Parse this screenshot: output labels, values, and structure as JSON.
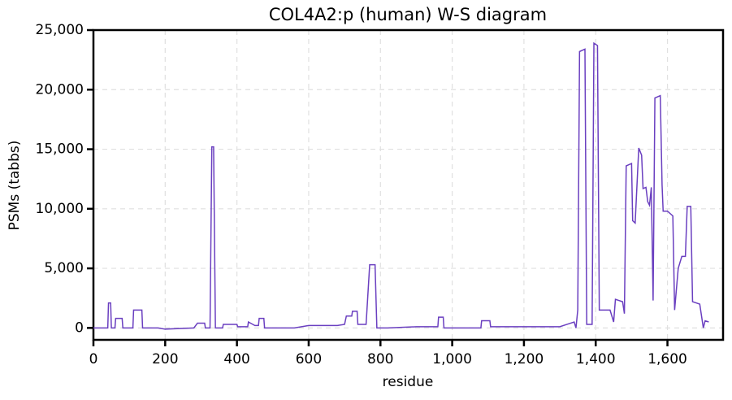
{
  "chart_data": {
    "type": "line",
    "title": "COL4A2:p (human) W-S diagram",
    "x_label": "residue",
    "y_label": "PSMs (tabbs)",
    "color": "#6a3fc0",
    "grid": true,
    "xlim": [
      0,
      1755
    ],
    "ylim": [
      -1000,
      25000
    ],
    "xticks": [
      0,
      200,
      400,
      600,
      800,
      {
        "value": 1000,
        "label": "1,000"
      },
      {
        "value": 1200,
        "label": "1,200"
      },
      {
        "value": 1400,
        "label": "1,400"
      },
      {
        "value": 1600,
        "label": "1,600"
      }
    ],
    "yticks": [
      0,
      {
        "value": 5000,
        "label": "5,000"
      },
      {
        "value": 10000,
        "label": "10,000"
      },
      {
        "value": 15000,
        "label": "15,000"
      },
      {
        "value": 20000,
        "label": "20,000"
      },
      {
        "value": 25000,
        "label": "25,000"
      }
    ],
    "x": [
      0,
      40,
      42,
      48,
      50,
      60,
      62,
      80,
      82,
      110,
      112,
      135,
      137,
      180,
      200,
      280,
      290,
      310,
      312,
      325,
      330,
      335,
      340,
      360,
      362,
      400,
      402,
      430,
      432,
      450,
      460,
      462,
      475,
      477,
      560,
      600,
      680,
      700,
      705,
      720,
      722,
      735,
      737,
      760,
      770,
      785,
      790,
      820,
      900,
      960,
      962,
      975,
      977,
      1080,
      1082,
      1105,
      1107,
      1200,
      1300,
      1320,
      1340,
      1345,
      1350,
      1355,
      1370,
      1375,
      1390,
      1395,
      1405,
      1410,
      1420,
      1440,
      1450,
      1455,
      1475,
      1480,
      1485,
      1500,
      1503,
      1510,
      1520,
      1528,
      1532,
      1540,
      1545,
      1550,
      1555,
      1560,
      1565,
      1580,
      1585,
      1588,
      1600,
      1615,
      1620,
      1630,
      1640,
      1650,
      1655,
      1665,
      1670,
      1690,
      1700,
      1705,
      1715
    ],
    "values": [
      0,
      0,
      2100,
      2100,
      0,
      0,
      800,
      800,
      0,
      0,
      1500,
      1500,
      0,
      0,
      -100,
      0,
      400,
      400,
      0,
      0,
      15200,
      15200,
      0,
      0,
      300,
      300,
      100,
      100,
      500,
      200,
      200,
      800,
      800,
      0,
      0,
      200,
      200,
      300,
      1000,
      1000,
      1400,
      1400,
      300,
      300,
      5300,
      5300,
      0,
      0,
      100,
      100,
      900,
      900,
      0,
      0,
      600,
      600,
      100,
      100,
      100,
      300,
      500,
      0,
      1500,
      23200,
      23400,
      300,
      300,
      23900,
      23700,
      1500,
      1500,
      1500,
      500,
      2400,
      2200,
      1200,
      13600,
      13800,
      9000,
      8800,
      15100,
      14500,
      11700,
      11800,
      10600,
      10300,
      11800,
      2300,
      19300,
      19500,
      12000,
      9800,
      9800,
      9400,
      1500,
      5000,
      6000,
      6000,
      10200,
      10200,
      2200,
      2000,
      0,
      600,
      500
    ]
  }
}
